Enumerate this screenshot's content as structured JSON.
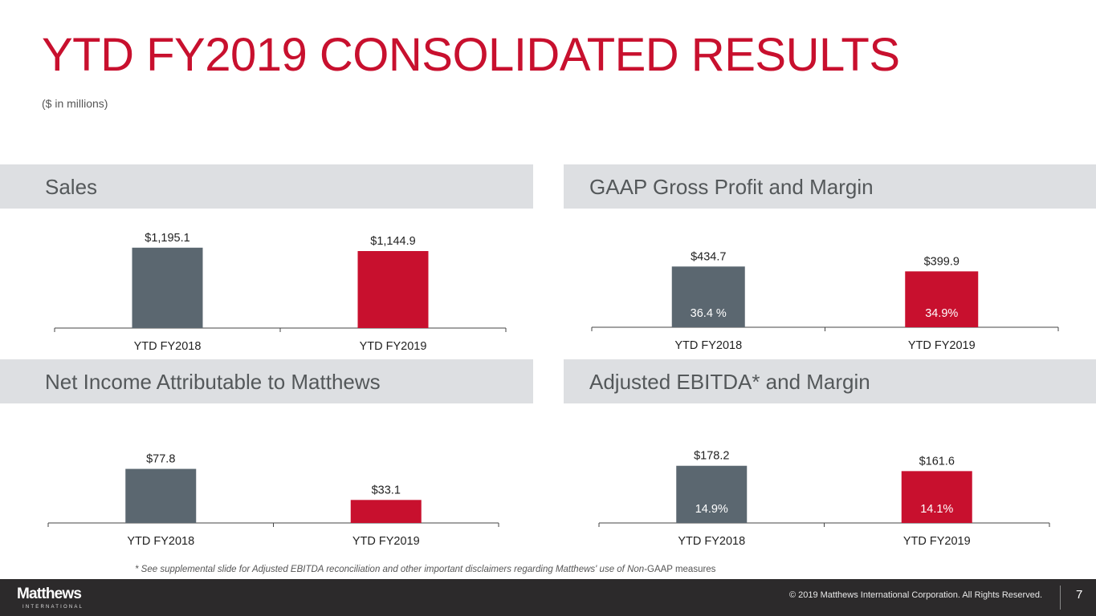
{
  "slide": {
    "title": "YTD FY2019 CONSOLIDATED RESULTS",
    "subtitle": "($ in millions)",
    "footnote_italic": "* See supplemental slide for Adjusted EBITDA reconciliation and other important disclaimers regarding Matthews' use of Non-",
    "footnote_plain": "GAAP measures",
    "colors": {
      "accent": "#c8102e",
      "bar_prior": "#5b6770",
      "bar_current": "#c8102e",
      "panel_header_bg": "#dddfe2",
      "footer_bg": "#2c2a2b"
    }
  },
  "footer": {
    "logo_main": "Matthews",
    "logo_sub": "INTERNATIONAL",
    "copyright": "© 2019 Matthews International Corporation. All Rights Reserved.",
    "page_number": "7"
  },
  "chart_data": [
    {
      "type": "bar",
      "title": "Sales",
      "categories": [
        "YTD FY2018",
        "YTD FY2019"
      ],
      "values": [
        1195.1,
        1144.9
      ],
      "value_labels": [
        "$1,195.1",
        "$1,144.9"
      ],
      "inner_labels": [],
      "xlabel": "",
      "ylabel": "",
      "ylim": [
        0,
        1300
      ],
      "grid": false
    },
    {
      "type": "bar",
      "title": "GAAP Gross Profit and Margin",
      "categories": [
        "YTD FY2018",
        "YTD FY2019"
      ],
      "values": [
        434.7,
        399.9
      ],
      "value_labels": [
        "$434.7",
        "$399.9"
      ],
      "inner_labels": [
        "36.4 %",
        "34.9%"
      ],
      "margins_percent": [
        36.4,
        34.9
      ],
      "xlabel": "",
      "ylabel": "",
      "ylim": [
        0,
        620
      ],
      "grid": false
    },
    {
      "type": "bar",
      "title": "Net Income Attributable to Matthews",
      "categories": [
        "YTD FY2018",
        "YTD FY2019"
      ],
      "values": [
        77.8,
        33.1
      ],
      "value_labels": [
        "$77.8",
        "$33.1"
      ],
      "inner_labels": [],
      "xlabel": "",
      "ylabel": "",
      "ylim": [
        0,
        120
      ],
      "grid": false
    },
    {
      "type": "bar",
      "title": "Adjusted EBITDA* and Margin",
      "categories": [
        "YTD FY2018",
        "YTD FY2019"
      ],
      "values": [
        178.2,
        161.6
      ],
      "value_labels": [
        "$178.2",
        "$161.6"
      ],
      "inner_labels": [
        "14.9%",
        "14.1%"
      ],
      "margins_percent": [
        14.9,
        14.1
      ],
      "xlabel": "",
      "ylabel": "",
      "ylim": [
        0,
        260
      ],
      "grid": false
    }
  ]
}
